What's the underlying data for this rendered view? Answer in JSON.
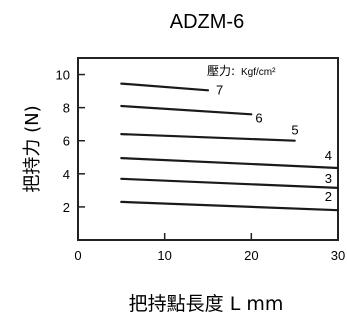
{
  "chart_data": {
    "type": "line",
    "title": "ADZM-6",
    "xlabel": "把持點長度 L  mm",
    "ylabel": "把持力 (N)",
    "xlim": [
      0,
      30
    ],
    "ylim": [
      0,
      11
    ],
    "x_ticks": [
      0,
      10,
      20,
      30
    ],
    "x_tick_labels": [
      "0",
      "10",
      "20",
      "30"
    ],
    "y_ticks": [
      2,
      4,
      6,
      8,
      10
    ],
    "y_tick_labels": [
      "2",
      "4",
      "6",
      "8",
      "10"
    ],
    "legend_title": "壓力:",
    "legend_unit": "Kgf/cm²",
    "grid": false,
    "series": [
      {
        "name": "2",
        "x": [
          5,
          30
        ],
        "y": [
          2.3,
          1.8
        ]
      },
      {
        "name": "3",
        "x": [
          5,
          30
        ],
        "y": [
          3.7,
          3.15
        ]
      },
      {
        "name": "4",
        "x": [
          5,
          30
        ],
        "y": [
          4.95,
          4.35
        ]
      },
      {
        "name": "5",
        "x": [
          5,
          25
        ],
        "y": [
          6.4,
          6.0
        ]
      },
      {
        "name": "6",
        "x": [
          5,
          20
        ],
        "y": [
          8.1,
          7.6
        ]
      },
      {
        "name": "7",
        "x": [
          5,
          15
        ],
        "y": [
          9.45,
          9.05
        ]
      }
    ],
    "line_color": "#1a1a1a",
    "background_color": "#ffffff"
  }
}
